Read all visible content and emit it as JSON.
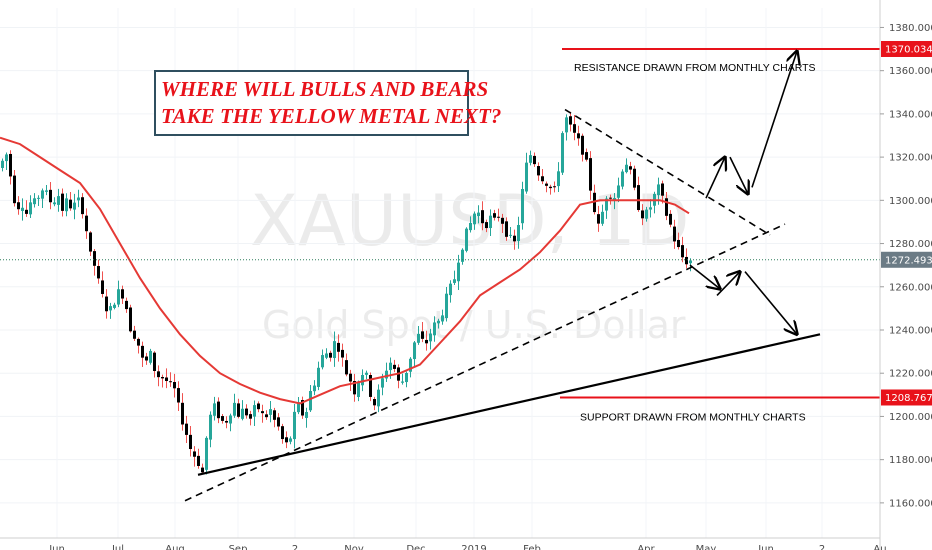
{
  "chart_data": {
    "type": "candlestick",
    "symbol_watermark": "XAUUSD, 1D",
    "name_watermark": "Gold Spot / U.S. Dollar",
    "title": [
      "WHERE WILL BULLS AND BEARS",
      "TAKE THE YELLOW METAL NEXT?"
    ],
    "x_tick_labels": [
      "Jun",
      "Jul",
      "Aug",
      "Sep",
      "2",
      "Nov",
      "Dec",
      "2019",
      "Feb",
      "Apr",
      "May",
      "Jun",
      "2",
      "Au"
    ],
    "y_tick_labels": [
      "1160.000",
      "1180.000",
      "1200.000",
      "1220.000",
      "1240.000",
      "1260.000",
      "1280.000",
      "1300.000",
      "1320.000",
      "1340.000",
      "1360.000",
      "1380.000"
    ],
    "ylim": [
      1153,
      1389
    ],
    "current_price": "1272.493",
    "resistance": {
      "value": 1370.034,
      "label": "1370.034",
      "caption": "RESISTANCE DRAWN FROM MONTHLY CHARTS"
    },
    "support": {
      "value": 1208.767,
      "label": "1208.767",
      "caption": "SUPPORT DRAWN FROM MONTHLY CHARTS"
    },
    "price_path": [
      [
        0,
        1315
      ],
      [
        3,
        1318
      ],
      [
        8,
        1322
      ],
      [
        12,
        1308
      ],
      [
        17,
        1296
      ],
      [
        22,
        1300
      ],
      [
        27,
        1294
      ],
      [
        32,
        1300
      ],
      [
        36,
        1298
      ],
      [
        42,
        1306
      ],
      [
        48,
        1302
      ],
      [
        53,
        1298
      ],
      [
        58,
        1304
      ],
      [
        63,
        1296
      ],
      [
        68,
        1300
      ],
      [
        73,
        1296
      ],
      [
        78,
        1300
      ],
      [
        82,
        1298
      ],
      [
        86,
        1290
      ],
      [
        90,
        1275
      ],
      [
        95,
        1270
      ],
      [
        100,
        1260
      ],
      [
        105,
        1252
      ],
      [
        110,
        1248
      ],
      [
        115,
        1254
      ],
      [
        120,
        1258
      ],
      [
        125,
        1256
      ],
      [
        130,
        1242
      ],
      [
        135,
        1238
      ],
      [
        140,
        1232
      ],
      [
        145,
        1222
      ],
      [
        150,
        1230
      ],
      [
        155,
        1222
      ],
      [
        160,
        1218
      ],
      [
        165,
        1218
      ],
      [
        170,
        1214
      ],
      [
        175,
        1212
      ],
      [
        180,
        1202
      ],
      [
        185,
        1196
      ],
      [
        190,
        1186
      ],
      [
        195,
        1182
      ],
      [
        200,
        1178
      ],
      [
        203,
        1174
      ],
      [
        207,
        1190
      ],
      [
        211,
        1200
      ],
      [
        215,
        1204
      ],
      [
        220,
        1200
      ],
      [
        225,
        1196
      ],
      [
        230,
        1202
      ],
      [
        235,
        1206
      ],
      [
        240,
        1200
      ],
      [
        245,
        1204
      ],
      [
        250,
        1198
      ],
      [
        255,
        1203
      ],
      [
        260,
        1204
      ],
      [
        265,
        1198
      ],
      [
        270,
        1204
      ],
      [
        275,
        1198
      ],
      [
        280,
        1194
      ],
      [
        285,
        1186
      ],
      [
        290,
        1188
      ],
      [
        295,
        1200
      ],
      [
        300,
        1206
      ],
      [
        305,
        1198
      ],
      [
        310,
        1210
      ],
      [
        315,
        1216
      ],
      [
        320,
        1224
      ],
      [
        325,
        1230
      ],
      [
        330,
        1228
      ],
      [
        335,
        1234
      ],
      [
        340,
        1232
      ],
      [
        345,
        1222
      ],
      [
        350,
        1218
      ],
      [
        355,
        1212
      ],
      [
        360,
        1218
      ],
      [
        365,
        1222
      ],
      [
        370,
        1212
      ],
      [
        375,
        1206
      ],
      [
        380,
        1212
      ],
      [
        385,
        1220
      ],
      [
        390,
        1226
      ],
      [
        395,
        1222
      ],
      [
        400,
        1214
      ],
      [
        405,
        1218
      ],
      [
        410,
        1226
      ],
      [
        415,
        1234
      ],
      [
        420,
        1238
      ],
      [
        425,
        1232
      ],
      [
        430,
        1238
      ],
      [
        435,
        1242
      ],
      [
        440,
        1244
      ],
      [
        445,
        1252
      ],
      [
        450,
        1258
      ],
      [
        455,
        1264
      ],
      [
        460,
        1276
      ],
      [
        465,
        1282
      ],
      [
        470,
        1288
      ],
      [
        475,
        1294
      ],
      [
        480,
        1294
      ],
      [
        485,
        1288
      ],
      [
        490,
        1292
      ],
      [
        495,
        1290
      ],
      [
        500,
        1294
      ],
      [
        505,
        1288
      ],
      [
        510,
        1282
      ],
      [
        515,
        1280
      ],
      [
        520,
        1292
      ],
      [
        525,
        1312
      ],
      [
        530,
        1322
      ],
      [
        535,
        1318
      ],
      [
        540,
        1312
      ],
      [
        545,
        1310
      ],
      [
        550,
        1306
      ],
      [
        555,
        1304
      ],
      [
        560,
        1318
      ],
      [
        565,
        1340
      ],
      [
        570,
        1334
      ],
      [
        575,
        1330
      ],
      [
        580,
        1326
      ],
      [
        585,
        1322
      ],
      [
        590,
        1308
      ],
      [
        595,
        1296
      ],
      [
        598,
        1286
      ],
      [
        602,
        1292
      ],
      [
        606,
        1302
      ],
      [
        610,
        1304
      ],
      [
        615,
        1302
      ],
      [
        620,
        1308
      ],
      [
        625,
        1320
      ],
      [
        630,
        1314
      ],
      [
        635,
        1304
      ],
      [
        640,
        1296
      ],
      [
        645,
        1292
      ],
      [
        650,
        1296
      ],
      [
        655,
        1302
      ],
      [
        660,
        1306
      ],
      [
        665,
        1296
      ],
      [
        670,
        1290
      ],
      [
        675,
        1282
      ],
      [
        680,
        1276
      ],
      [
        685,
        1272
      ],
      [
        689,
        1272
      ]
    ],
    "ma_path": [
      [
        0,
        1329
      ],
      [
        20,
        1326
      ],
      [
        40,
        1320
      ],
      [
        60,
        1314
      ],
      [
        80,
        1308
      ],
      [
        100,
        1296
      ],
      [
        120,
        1280
      ],
      [
        140,
        1264
      ],
      [
        160,
        1250
      ],
      [
        180,
        1238
      ],
      [
        200,
        1228
      ],
      [
        220,
        1220
      ],
      [
        240,
        1215
      ],
      [
        260,
        1211
      ],
      [
        280,
        1208
      ],
      [
        300,
        1206
      ],
      [
        320,
        1210
      ],
      [
        340,
        1214
      ],
      [
        360,
        1216
      ],
      [
        380,
        1218
      ],
      [
        400,
        1220
      ],
      [
        420,
        1224
      ],
      [
        440,
        1234
      ],
      [
        460,
        1244
      ],
      [
        480,
        1256
      ],
      [
        500,
        1262
      ],
      [
        520,
        1268
      ],
      [
        540,
        1276
      ],
      [
        560,
        1286
      ],
      [
        580,
        1298
      ],
      [
        600,
        1300
      ],
      [
        620,
        1300
      ],
      [
        640,
        1300
      ],
      [
        660,
        1300
      ],
      [
        675,
        1298
      ],
      [
        689,
        1294
      ]
    ],
    "trendlines": {
      "upper_dashed": [
        [
          565,
          1342
        ],
        [
          770,
          1284
        ]
      ],
      "lower_dashed": [
        [
          185,
          1161
        ],
        [
          785,
          1289
        ]
      ],
      "solid_support": [
        [
          198,
          1173
        ],
        [
          820,
          1238
        ]
      ]
    },
    "annotation_arrows": [
      [
        [
          706,
          1301
        ],
        [
          725,
          1320
        ]
      ],
      [
        [
          730,
          1320
        ],
        [
          748,
          1303
        ]
      ],
      [
        [
          752,
          1306
        ],
        [
          797,
          1369
        ]
      ],
      [
        [
          690,
          1270
        ],
        [
          720,
          1259
        ]
      ],
      [
        [
          717,
          1256
        ],
        [
          740,
          1267
        ]
      ],
      [
        [
          745,
          1267
        ],
        [
          797,
          1238
        ]
      ]
    ]
  },
  "colors": {
    "up_candle": "#26a69a",
    "down_candle": "#ef5350",
    "candle_body": "#000000",
    "ma_line": "#e53935",
    "level_line": "#e8121a",
    "title_text": "#e8121a",
    "title_border": "#2f4f5f",
    "trendline": "#000000",
    "price_line": "#2e7d5b"
  }
}
